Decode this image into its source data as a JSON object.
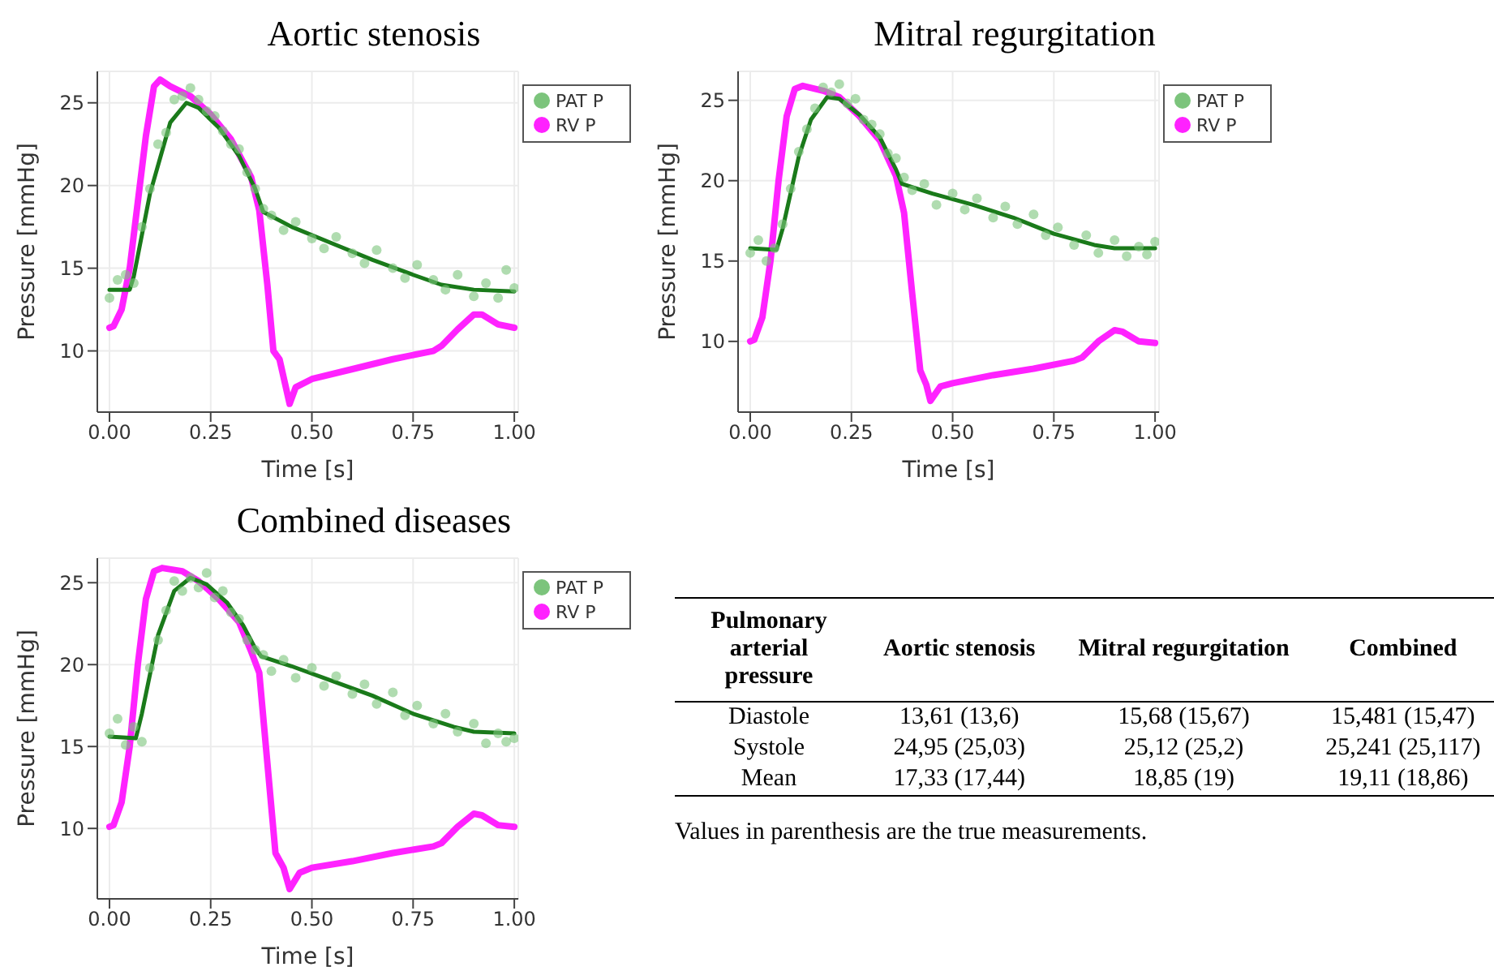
{
  "chart_data": [
    {
      "type": "line",
      "title": "Aortic stenosis",
      "xlabel": "Time [s]",
      "ylabel": "Pressure [mmHg]",
      "xlim": [
        -0.03,
        1.01
      ],
      "ylim": [
        6.3,
        26.9
      ],
      "xticks": [
        {
          "value": 0,
          "label": "0.00"
        },
        {
          "value": 0.25,
          "label": "0.25"
        },
        {
          "value": 0.5,
          "label": "0.50"
        },
        {
          "value": 0.75,
          "label": "0.75"
        },
        {
          "value": 1,
          "label": "1.00"
        }
      ],
      "yticks": [
        10,
        15,
        20,
        25
      ],
      "grid": true,
      "legend": "top right",
      "series": [
        {
          "name": "RV P",
          "type": "line",
          "color": "#ff22ff",
          "x": [
            0,
            0.01,
            0.03,
            0.05,
            0.07,
            0.09,
            0.11,
            0.125,
            0.15,
            0.2,
            0.25,
            0.3,
            0.35,
            0.37,
            0.39,
            0.405,
            0.42,
            0.445,
            0.46,
            0.5,
            0.6,
            0.7,
            0.8,
            0.82,
            0.86,
            0.9,
            0.92,
            0.96,
            1
          ],
          "values": [
            11.4,
            11.5,
            12.5,
            15,
            19,
            23,
            26,
            26.4,
            26,
            25.4,
            24.3,
            22.8,
            20.5,
            18.5,
            14,
            10,
            9.5,
            6.8,
            7.8,
            8.3,
            8.9,
            9.5,
            10,
            10.3,
            11.3,
            12.2,
            12.2,
            11.6,
            11.4
          ]
        },
        {
          "name": "PAT P",
          "type": "scatter",
          "color": "#7cc47c",
          "x": [
            0,
            0.02,
            0.04,
            0.06,
            0.08,
            0.1,
            0.12,
            0.14,
            0.16,
            0.18,
            0.2,
            0.22,
            0.24,
            0.26,
            0.28,
            0.3,
            0.32,
            0.34,
            0.36,
            0.38,
            0.4,
            0.43,
            0.46,
            0.5,
            0.53,
            0.56,
            0.6,
            0.63,
            0.66,
            0.7,
            0.73,
            0.76,
            0.8,
            0.83,
            0.86,
            0.9,
            0.93,
            0.96,
            0.98,
            1
          ],
          "values": [
            13.2,
            14.3,
            14.6,
            14.1,
            17.5,
            19.8,
            22.5,
            23.2,
            25.2,
            25.4,
            25.9,
            25.2,
            24.5,
            24.2,
            23.3,
            22.5,
            22.2,
            20.8,
            19.8,
            18.6,
            18.2,
            17.3,
            17.8,
            16.8,
            16.2,
            16.9,
            15.9,
            15.3,
            16.1,
            15,
            14.4,
            15.2,
            14.3,
            13.7,
            14.6,
            13.3,
            14.1,
            13.2,
            14.9,
            13.8
          ]
        },
        {
          "type": "line",
          "color": "#1a7a1a",
          "x": [
            0,
            0.05,
            0.06,
            0.1,
            0.15,
            0.19,
            0.22,
            0.27,
            0.32,
            0.36,
            0.38,
            0.45,
            0.55,
            0.65,
            0.75,
            0.82,
            0.9,
            1
          ],
          "values": [
            13.7,
            13.7,
            14.5,
            19.5,
            23.8,
            25,
            24.7,
            23.5,
            21.8,
            19.8,
            18.4,
            17.5,
            16.5,
            15.5,
            14.6,
            14,
            13.7,
            13.6
          ]
        }
      ]
    },
    {
      "type": "line",
      "title": "Mitral regurgitation",
      "xlabel": "Time [s]",
      "ylabel": "Pressure [mmHg]",
      "xlim": [
        -0.03,
        1.01
      ],
      "ylim": [
        5.6,
        26.8
      ],
      "xticks": [
        {
          "value": 0,
          "label": "0.00"
        },
        {
          "value": 0.25,
          "label": "0.25"
        },
        {
          "value": 0.5,
          "label": "0.50"
        },
        {
          "value": 0.75,
          "label": "0.75"
        },
        {
          "value": 1,
          "label": "1.00"
        }
      ],
      "yticks": [
        10,
        15,
        20,
        25
      ],
      "grid": true,
      "legend": "top right",
      "series": [
        {
          "name": "RV P",
          "type": "line",
          "color": "#ff22ff",
          "x": [
            0,
            0.01,
            0.03,
            0.05,
            0.07,
            0.09,
            0.11,
            0.13,
            0.18,
            0.22,
            0.27,
            0.32,
            0.36,
            0.38,
            0.4,
            0.42,
            0.435,
            0.445,
            0.47,
            0.5,
            0.6,
            0.7,
            0.8,
            0.82,
            0.86,
            0.9,
            0.92,
            0.96,
            1
          ],
          "values": [
            10,
            10.1,
            11.5,
            15,
            20,
            24,
            25.7,
            25.9,
            25.6,
            25.2,
            24,
            22.5,
            20.3,
            18,
            13,
            8.2,
            7.3,
            6.3,
            7.2,
            7.4,
            7.9,
            8.3,
            8.8,
            9,
            10,
            10.7,
            10.6,
            10,
            9.9
          ]
        },
        {
          "name": "PAT P",
          "type": "scatter",
          "color": "#7cc47c",
          "x": [
            0,
            0.02,
            0.04,
            0.06,
            0.08,
            0.1,
            0.12,
            0.14,
            0.16,
            0.18,
            0.2,
            0.22,
            0.24,
            0.26,
            0.28,
            0.3,
            0.32,
            0.34,
            0.36,
            0.38,
            0.4,
            0.43,
            0.46,
            0.5,
            0.53,
            0.56,
            0.6,
            0.63,
            0.66,
            0.7,
            0.73,
            0.76,
            0.8,
            0.83,
            0.86,
            0.9,
            0.93,
            0.96,
            0.98,
            1
          ],
          "values": [
            15.5,
            16.3,
            15,
            15.8,
            17.3,
            19.5,
            21.8,
            23.2,
            24.5,
            25.8,
            25.5,
            26,
            24.8,
            25.1,
            23.8,
            23.5,
            22.9,
            21.7,
            21.4,
            20.2,
            19.4,
            19.8,
            18.5,
            19.2,
            18.2,
            18.9,
            17.7,
            18.4,
            17.3,
            17.9,
            16.6,
            17.1,
            16,
            16.6,
            15.5,
            16.3,
            15.3,
            15.9,
            15.4,
            16.2
          ]
        },
        {
          "type": "line",
          "color": "#1a7a1a",
          "x": [
            0,
            0.065,
            0.08,
            0.12,
            0.15,
            0.19,
            0.22,
            0.27,
            0.32,
            0.36,
            0.375,
            0.45,
            0.55,
            0.65,
            0.75,
            0.85,
            0.9,
            1
          ],
          "values": [
            15.8,
            15.7,
            17,
            21.5,
            23.8,
            25.2,
            25.1,
            24.1,
            22.7,
            20.7,
            19.8,
            19.2,
            18.5,
            17.7,
            16.7,
            16,
            15.8,
            15.8
          ]
        }
      ]
    },
    {
      "type": "line",
      "title": "Combined diseases",
      "xlabel": "Time [s]",
      "ylabel": "Pressure [mmHg]",
      "xlim": [
        -0.03,
        1.01
      ],
      "ylim": [
        5.7,
        26.5
      ],
      "xticks": [
        {
          "value": 0,
          "label": "0.00"
        },
        {
          "value": 0.25,
          "label": "0.25"
        },
        {
          "value": 0.5,
          "label": "0.50"
        },
        {
          "value": 0.75,
          "label": "0.75"
        },
        {
          "value": 1,
          "label": "1.00"
        }
      ],
      "yticks": [
        10,
        15,
        20,
        25
      ],
      "grid": true,
      "legend": "top right",
      "series": [
        {
          "name": "RV P",
          "type": "line",
          "color": "#ff22ff",
          "x": [
            0,
            0.01,
            0.03,
            0.05,
            0.07,
            0.09,
            0.11,
            0.13,
            0.18,
            0.22,
            0.27,
            0.32,
            0.35,
            0.37,
            0.39,
            0.41,
            0.43,
            0.445,
            0.47,
            0.5,
            0.6,
            0.7,
            0.8,
            0.82,
            0.86,
            0.9,
            0.92,
            0.96,
            1
          ],
          "values": [
            10.1,
            10.2,
            11.6,
            15,
            20,
            24,
            25.7,
            25.9,
            25.7,
            25.1,
            24,
            22.6,
            20.8,
            19.5,
            14,
            8.5,
            7.6,
            6.3,
            7.3,
            7.6,
            8,
            8.5,
            8.9,
            9.1,
            10.1,
            10.9,
            10.8,
            10.2,
            10.1
          ]
        },
        {
          "name": "PAT P",
          "type": "scatter",
          "color": "#7cc47c",
          "x": [
            0,
            0.02,
            0.04,
            0.06,
            0.08,
            0.1,
            0.12,
            0.14,
            0.16,
            0.18,
            0.2,
            0.22,
            0.24,
            0.26,
            0.28,
            0.3,
            0.32,
            0.34,
            0.36,
            0.38,
            0.4,
            0.43,
            0.46,
            0.5,
            0.53,
            0.56,
            0.6,
            0.63,
            0.66,
            0.7,
            0.73,
            0.76,
            0.8,
            0.83,
            0.86,
            0.9,
            0.93,
            0.96,
            0.98,
            1
          ],
          "values": [
            15.8,
            16.7,
            15.1,
            16.2,
            15.3,
            19.8,
            21.5,
            23.3,
            25.1,
            24.5,
            25.3,
            24.7,
            25.6,
            24.1,
            24.5,
            23.2,
            22.8,
            21.5,
            20.9,
            20.6,
            19.6,
            20.3,
            19.2,
            19.8,
            18.7,
            19.3,
            18.2,
            18.8,
            17.6,
            18.3,
            16.9,
            17.5,
            16.4,
            17,
            15.9,
            16.4,
            15.2,
            15.8,
            15.3,
            15.5
          ]
        },
        {
          "type": "line",
          "color": "#1a7a1a",
          "x": [
            0,
            0.065,
            0.08,
            0.12,
            0.16,
            0.2,
            0.24,
            0.29,
            0.33,
            0.36,
            0.375,
            0.45,
            0.55,
            0.65,
            0.75,
            0.85,
            0.9,
            1
          ],
          "values": [
            15.6,
            15.5,
            17,
            21.8,
            24.5,
            25.3,
            24.9,
            23.8,
            22.4,
            21,
            20.5,
            19.9,
            19,
            18.1,
            17,
            16.2,
            15.9,
            15.8
          ]
        }
      ]
    },
    {
      "type": "other",
      "categories": [
        "Pulmonary arterial pressure",
        "Aortic stenosis",
        "Mitral regurgitation",
        "Combined"
      ],
      "y_categories": [
        "Diastole",
        "Systole",
        "Mean"
      ],
      "cell_labels": [
        [
          "13,61 (13,6)",
          "15,68 (15,67)",
          "15,481 (15,47)"
        ],
        [
          "24,95 (25,03)",
          "25,12 (25,2)",
          "25,241 (25,117)"
        ],
        [
          "17,33 (17,44)",
          "18,85 (19)",
          "19,11 (18,86)"
        ]
      ],
      "annotations": [
        "Values in parenthesis are the true measurements."
      ]
    }
  ]
}
